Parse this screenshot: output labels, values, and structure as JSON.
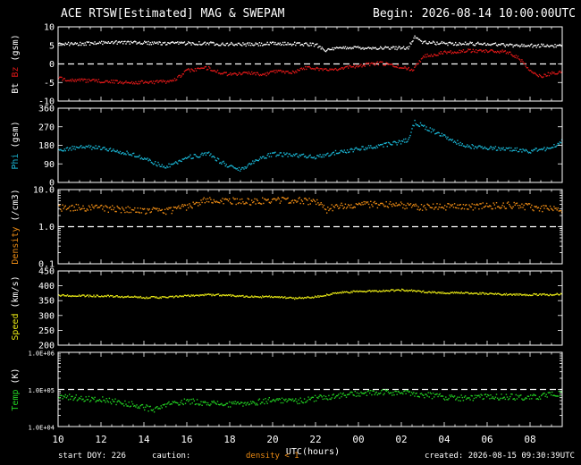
{
  "header": {
    "title": "ACE RTSW[Estimated] MAG & SWEPAM",
    "begin": "Begin: 2026-08-14 10:00:00UTC"
  },
  "footer": {
    "start_doy": "start DOY: 226",
    "caution": "caution:",
    "density_note": "density < 1",
    "created": "created: 2026-08-15 09:30:39UTC"
  },
  "colors": {
    "background": "#000000",
    "frame": "#ffffff",
    "bt": "#ffffff",
    "bz": "#e01818",
    "phi": "#19b4d2",
    "density": "#ee8c14",
    "speed": "#e6e614",
    "temp": "#22d022",
    "caution": "#ee8c14"
  },
  "chart_data": {
    "type": "scatter",
    "x_axis": {
      "label": "UTC(hours)",
      "range_hours": [
        10,
        33.5
      ],
      "ticks": [
        "10",
        "12",
        "14",
        "16",
        "18",
        "20",
        "22",
        "00",
        "02",
        "04",
        "06",
        "08"
      ]
    },
    "panels": [
      {
        "id": "mag",
        "ylabel_parts": [
          {
            "text": "Bt",
            "color": "#ffffff"
          },
          {
            "text": " Bz",
            "color": "#e01818"
          },
          {
            "text": " (gsm)",
            "color": "#ffffff"
          }
        ],
        "ylim": [
          -10,
          10
        ],
        "yticks": [
          "-10",
          "-5",
          "0",
          "5",
          "10"
        ],
        "dashed_reference": 0,
        "series": [
          {
            "name": "Bt",
            "color": "#ffffff",
            "points": [
              [
                10,
                5.6
              ],
              [
                11,
                5.6
              ],
              [
                12,
                5.9
              ],
              [
                13,
                6
              ],
              [
                14,
                5.9
              ],
              [
                15,
                5.6
              ],
              [
                16,
                5.8
              ],
              [
                17,
                5.7
              ],
              [
                18,
                5.5
              ],
              [
                19,
                5.4
              ],
              [
                20,
                5.6
              ],
              [
                21,
                5.6
              ],
              [
                22,
                5.3
              ],
              [
                22.5,
                3.8
              ],
              [
                23,
                4.3
              ],
              [
                23.5,
                4.6
              ],
              [
                24.5,
                4.5
              ],
              [
                25.5,
                4.4
              ],
              [
                26.3,
                4.6
              ],
              [
                26.6,
                7.5
              ],
              [
                27,
                5.9
              ],
              [
                28,
                5.7
              ],
              [
                29,
                5.6
              ],
              [
                30,
                5.6
              ],
              [
                31,
                5.2
              ],
              [
                32,
                5.1
              ],
              [
                33.5,
                5
              ]
            ]
          },
          {
            "name": "Bz",
            "color": "#e01818",
            "points": [
              [
                10,
                -3.8
              ],
              [
                11,
                -4.3
              ],
              [
                12,
                -4.5
              ],
              [
                13,
                -4.8
              ],
              [
                14,
                -4.8
              ],
              [
                15,
                -4.6
              ],
              [
                15.5,
                -3.8
              ],
              [
                16,
                -1.6
              ],
              [
                17,
                -0.9
              ],
              [
                17.5,
                -2.2
              ],
              [
                18,
                -2.7
              ],
              [
                19,
                -2.2
              ],
              [
                19.5,
                -3
              ],
              [
                20,
                -1.8
              ],
              [
                21,
                -2
              ],
              [
                21.5,
                -0.8
              ],
              [
                22,
                -1
              ],
              [
                22.5,
                -1.5
              ],
              [
                23,
                -1.1
              ],
              [
                24,
                -0.3
              ],
              [
                25,
                0.4
              ],
              [
                26,
                -0.8
              ],
              [
                26.5,
                -1.4
              ],
              [
                27,
                2.2
              ],
              [
                28,
                3.3
              ],
              [
                29,
                3.7
              ],
              [
                30,
                3.7
              ],
              [
                31,
                3.3
              ],
              [
                31.5,
                1.5
              ],
              [
                32,
                -2
              ],
              [
                32.5,
                -3.2
              ],
              [
                33,
                -2.3
              ],
              [
                33.5,
                -2
              ]
            ]
          }
        ]
      },
      {
        "id": "phi",
        "ylabel_parts": [
          {
            "text": "Phi",
            "color": "#19b4d2"
          },
          {
            "text": " (gsm)",
            "color": "#ffffff"
          }
        ],
        "ylim": [
          0,
          360
        ],
        "yticks": [
          "0",
          "90",
          "180",
          "270",
          "360"
        ],
        "series": [
          {
            "name": "Phi",
            "color": "#19b4d2",
            "points": [
              [
                10,
                160
              ],
              [
                11,
                175
              ],
              [
                12,
                170
              ],
              [
                13,
                150
              ],
              [
                13.5,
                135
              ],
              [
                14,
                120
              ],
              [
                14.5,
                95
              ],
              [
                15,
                80
              ],
              [
                15.5,
                100
              ],
              [
                16,
                125
              ],
              [
                17,
                140
              ],
              [
                17.5,
                105
              ],
              [
                18,
                80
              ],
              [
                18.5,
                65
              ],
              [
                19,
                100
              ],
              [
                19.5,
                125
              ],
              [
                20,
                140
              ],
              [
                21,
                135
              ],
              [
                22,
                125
              ],
              [
                22.5,
                135
              ],
              [
                23,
                150
              ],
              [
                24,
                165
              ],
              [
                24.5,
                175
              ],
              [
                25.5,
                190
              ],
              [
                26,
                200
              ],
              [
                26.3,
                210
              ],
              [
                26.6,
                295
              ],
              [
                27,
                275
              ],
              [
                27.5,
                250
              ],
              [
                28,
                225
              ],
              [
                28.5,
                200
              ],
              [
                29,
                180
              ],
              [
                30,
                170
              ],
              [
                31,
                165
              ],
              [
                32,
                155
              ],
              [
                33,
                170
              ],
              [
                33.5,
                210
              ]
            ]
          }
        ]
      },
      {
        "id": "density",
        "ylabel_parts": [
          {
            "text": "Density",
            "color": "#ee8c14"
          },
          {
            "text": " (/cm3)",
            "color": "#ffffff"
          }
        ],
        "ylim": [
          0.1,
          10
        ],
        "log_scale": true,
        "yticks": [
          "0.1",
          "1.0",
          "10.0"
        ],
        "dashed_reference": 1,
        "series": [
          {
            "name": "Density",
            "color": "#ee8c14",
            "points": [
              [
                10,
                3.3
              ],
              [
                11,
                3.4
              ],
              [
                12,
                3.2
              ],
              [
                13,
                3
              ],
              [
                14,
                2.8
              ],
              [
                15,
                2.7
              ],
              [
                16,
                3.6
              ],
              [
                17,
                5.6
              ],
              [
                18,
                5.2
              ],
              [
                19,
                4.8
              ],
              [
                20,
                5.5
              ],
              [
                21,
                5.3
              ],
              [
                22,
                4.8
              ],
              [
                22.5,
                3
              ],
              [
                23,
                3.8
              ],
              [
                24,
                4.2
              ],
              [
                25,
                4
              ],
              [
                26,
                3.9
              ],
              [
                27,
                3.5
              ],
              [
                28,
                3.6
              ],
              [
                29,
                3.5
              ],
              [
                30,
                3.8
              ],
              [
                31,
                3.9
              ],
              [
                32,
                3.5
              ],
              [
                33,
                3
              ],
              [
                33.5,
                2.9
              ]
            ]
          }
        ]
      },
      {
        "id": "speed",
        "ylabel_parts": [
          {
            "text": "Speed",
            "color": "#e6e614"
          },
          {
            "text": " (km/s)",
            "color": "#ffffff"
          }
        ],
        "ylim": [
          200,
          450
        ],
        "yticks": [
          "200",
          "250",
          "300",
          "350",
          "400",
          "450"
        ],
        "series": [
          {
            "name": "Speed",
            "color": "#e6e614",
            "points": [
              [
                10,
                370
              ],
              [
                11,
                368
              ],
              [
                12,
                368
              ],
              [
                13,
                365
              ],
              [
                14,
                363
              ],
              [
                15,
                363
              ],
              [
                16,
                368
              ],
              [
                17,
                372
              ],
              [
                18,
                370
              ],
              [
                19,
                365
              ],
              [
                20,
                365
              ],
              [
                21,
                360
              ],
              [
                22,
                365
              ],
              [
                23,
                378
              ],
              [
                24,
                383
              ],
              [
                25,
                385
              ],
              [
                26,
                388
              ],
              [
                27,
                382
              ],
              [
                28,
                378
              ],
              [
                29,
                378
              ],
              [
                30,
                375
              ],
              [
                31,
                373
              ],
              [
                32,
                372
              ],
              [
                33,
                372
              ],
              [
                33.5,
                375
              ]
            ]
          }
        ]
      },
      {
        "id": "temp",
        "ylabel_parts": [
          {
            "text": "Temp",
            "color": "#22d022"
          },
          {
            "text": " (K)",
            "color": "#ffffff"
          }
        ],
        "ylim": [
          10000,
          1000000
        ],
        "log_scale": true,
        "yticks": [
          "1.0E+04",
          "1.0E+05",
          "1.0E+06"
        ],
        "dashed_reference": 100000,
        "series": [
          {
            "name": "Temp",
            "color": "#22d022",
            "points": [
              [
                10,
                70000
              ],
              [
                11,
                60000
              ],
              [
                12,
                55000
              ],
              [
                13,
                45000
              ],
              [
                14,
                35000
              ],
              [
                14.5,
                28000
              ],
              [
                15,
                40000
              ],
              [
                16,
                50000
              ],
              [
                17,
                45000
              ],
              [
                18,
                40000
              ],
              [
                19,
                45000
              ],
              [
                20,
                55000
              ],
              [
                21,
                50000
              ],
              [
                22,
                60000
              ],
              [
                23,
                70000
              ],
              [
                24,
                80000
              ],
              [
                25,
                85000
              ],
              [
                26,
                85000
              ],
              [
                27,
                75000
              ],
              [
                28,
                65000
              ],
              [
                29,
                60000
              ],
              [
                30,
                65000
              ],
              [
                31,
                65000
              ],
              [
                32,
                62000
              ],
              [
                33,
                75000
              ],
              [
                33.5,
                80000
              ]
            ]
          }
        ]
      }
    ]
  }
}
